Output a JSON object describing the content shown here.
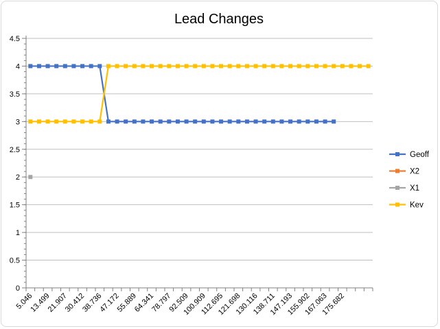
{
  "chart_data": {
    "type": "line",
    "title": "Lead Changes",
    "xlabel": "",
    "ylabel": "",
    "ylim": [
      0,
      4.5
    ],
    "yticks": [
      0,
      0.5,
      1,
      1.5,
      2,
      2.5,
      3,
      3.5,
      4,
      4.5
    ],
    "ytick_labels": [
      "0",
      "0.5",
      "1",
      "1.5",
      "2",
      "2.5",
      "3",
      "3.5",
      "4",
      "4.5"
    ],
    "xtick_labels": [
      "5.046",
      "13.499",
      "21.907",
      "30.412",
      "38.736",
      "47.172",
      "55.889",
      "64.341",
      "78.797",
      "92.509",
      "100.909",
      "112.695",
      "121.698",
      "130.116",
      "138.711",
      "147.193",
      "155.902",
      "167.063",
      "175.682"
    ],
    "num_categories": 40,
    "grid": true,
    "legend_position": "right",
    "series": [
      {
        "name": "Geoff",
        "color": "#4472c4",
        "start": 0,
        "values": [
          4,
          4,
          4,
          4,
          4,
          4,
          4,
          4,
          4,
          3,
          3,
          3,
          3,
          3,
          3,
          3,
          3,
          3,
          3,
          3,
          3,
          3,
          3,
          3,
          3,
          3,
          3,
          3,
          3,
          3,
          3,
          3,
          3,
          3,
          3,
          3
        ]
      },
      {
        "name": "X2",
        "color": "#ed7d31",
        "start": 0,
        "values": []
      },
      {
        "name": "X1",
        "color": "#a5a5a5",
        "start": 0,
        "values": [
          2
        ]
      },
      {
        "name": "Kev",
        "color": "#ffc000",
        "start": 0,
        "values": [
          3,
          3,
          3,
          3,
          3,
          3,
          3,
          3,
          3,
          4,
          4,
          4,
          4,
          4,
          4,
          4,
          4,
          4,
          4,
          4,
          4,
          4,
          4,
          4,
          4,
          4,
          4,
          4,
          4,
          4,
          4,
          4,
          4,
          4,
          4,
          4,
          4,
          4,
          4,
          4
        ]
      }
    ]
  }
}
